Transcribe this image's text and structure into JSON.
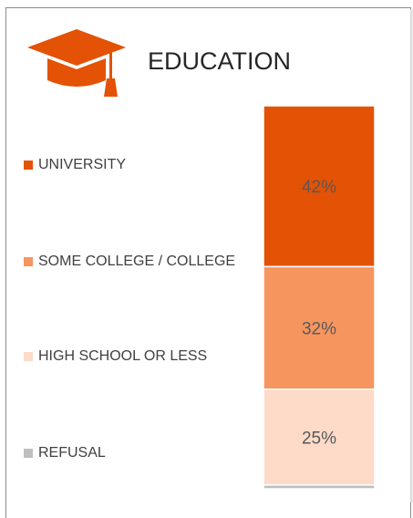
{
  "header": {
    "title": "EDUCATION",
    "icon": "graduation-cap-icon"
  },
  "colors": {
    "university": "#e35205",
    "some_college": "#f7955f",
    "high_school": "#fddbc8",
    "refusal": "#bfbfbf",
    "icon": "#e35205"
  },
  "chart_data": {
    "type": "bar",
    "stacked": true,
    "orientation": "vertical",
    "categories": [
      "EDUCATION"
    ],
    "series": [
      {
        "name": "UNIVERSITY",
        "values": [
          42
        ],
        "label": "42%",
        "color": "#e35205"
      },
      {
        "name": "SOME COLLEGE / COLLEGE",
        "values": [
          32
        ],
        "label": "32%",
        "color": "#f7955f"
      },
      {
        "name": "HIGH SCHOOL OR LESS",
        "values": [
          25
        ],
        "label": "25%",
        "color": "#fddbc8"
      },
      {
        "name": "REFUSAL",
        "values": [
          1
        ],
        "label": "",
        "color": "#bfbfbf"
      }
    ],
    "legend_position": "left",
    "ylim": [
      0,
      100
    ],
    "unit": "%"
  }
}
